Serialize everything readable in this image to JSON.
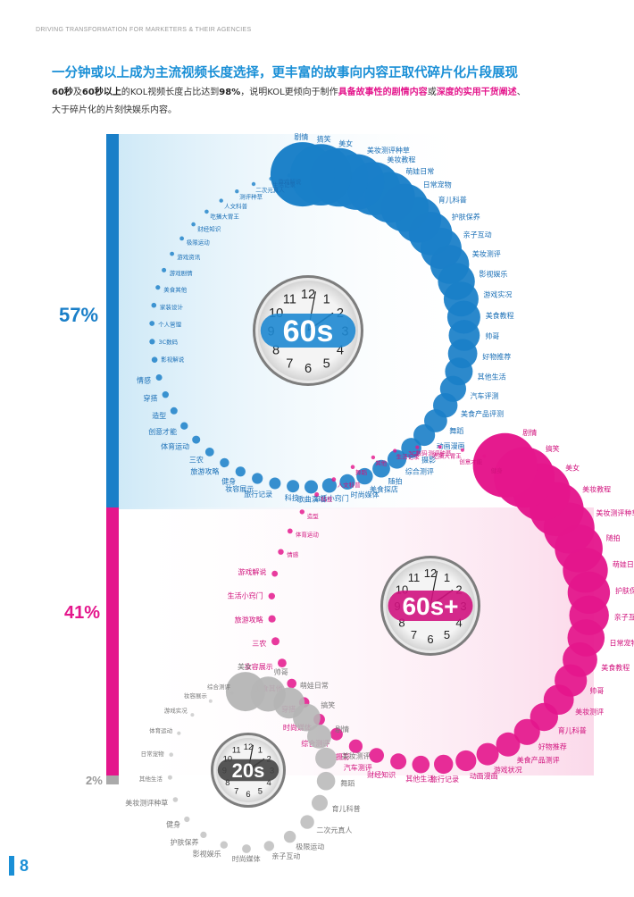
{
  "header": "DRIVING TRANSFORMATION FOR MARKETERS & THEIR AGENCIES",
  "title": "一分钟或以上成为主流视频长度选择，更丰富的故事向内容正取代碎片化片段展现",
  "subtitle": {
    "p1": "60秒",
    "p2": "及",
    "p3": "60秒以上",
    "p4": "的KOL视频长度占比达到",
    "p5": "98%",
    "p6": "，说明KOL更倾向于制作",
    "p7": "具备故事性的剧情内容",
    "p8": "或",
    "p9": "深度的实用干货阐述",
    "p10": "、",
    "p11": "大于碎片化的片刻快娱乐内容。"
  },
  "page_number": "8",
  "colors": {
    "blue": "#1a7fc8",
    "pink": "#e4168c",
    "gray": "#9a9a9a"
  },
  "chart_data": [
    {
      "type": "bubble-ring",
      "group": "60s",
      "share_percent": 57,
      "share_label": "57%",
      "clock_label": "60s",
      "categories": [
        "剧情",
        "搞笑",
        "美女",
        "美妆测评种草",
        "美妆教程",
        "萌娃日常",
        "日常宠物",
        "育儿科普",
        "护肤保养",
        "亲子互动",
        "美妆测评",
        "影视娱乐",
        "游戏实况",
        "美食教程",
        "帅哥",
        "好物推荐",
        "其他生活",
        "汽车评测",
        "美食产品评测",
        "舞蹈",
        "动画漫画",
        "摄影",
        "综合测评",
        "随拍",
        "美食探店",
        "时尚媒体",
        "生活小窍门",
        "歌曲演唱",
        "科技",
        "旅行记录",
        "妆容展示",
        "健身",
        "旅游攻略",
        "三农",
        "体育运动",
        "创意才能",
        "造型",
        "穿搭",
        "情感",
        "影视解说",
        "3C数码",
        "个人管理",
        "家装设计",
        "美食其他",
        "游戏剧情",
        "游戏资讯",
        "极限运动",
        "财经知识",
        "吃播大胃王",
        "人文科普",
        "测评种草",
        "二次元真人",
        "生活记录",
        "游戏解说"
      ]
    },
    {
      "type": "bubble-ring",
      "group": "60s+",
      "share_percent": 41,
      "share_label": "41%",
      "clock_label": "60s+",
      "categories": [
        "剧情",
        "搞笑",
        "美女",
        "美妆教程",
        "美妆测评种草",
        "随拍",
        "萌娃日常",
        "护肤保养",
        "亲子互动",
        "日常宠物",
        "美食教程",
        "帅哥",
        "美妆测评",
        "育儿科普",
        "好物推荐",
        "美食产品测评",
        "游戏状况",
        "动画漫画",
        "旅行记录",
        "其他生活",
        "财经知识",
        "汽车测评",
        "摄影",
        "综合测评",
        "时尚媒体",
        "穿搭",
        "美食其他",
        "妆容展示",
        "三农",
        "旅游攻略",
        "生活小窍门",
        "游戏解说",
        "情感",
        "体育运动",
        "造型",
        "科技",
        "人文科普",
        "舞蹈",
        "其他",
        "生活记录",
        "3C数码",
        "测评种草",
        "吃播大胃王",
        "创意才能",
        "健身"
      ]
    },
    {
      "type": "bubble-ring",
      "group": "20s",
      "share_percent": 2,
      "share_label": "2%",
      "clock_label": "20s",
      "categories": [
        "美女",
        "帅哥",
        "萌娃日常",
        "搞笑",
        "剧情",
        "美妆测评",
        "舞蹈",
        "育儿科普",
        "二次元真人",
        "极限运动",
        "亲子互动",
        "时尚媒体",
        "影视娱乐",
        "护肤保养",
        "健身",
        "美妆测评种草",
        "其他生活",
        "日常宠物",
        "体育运动",
        "游戏实况",
        "妆容展示",
        "综合测评"
      ]
    }
  ]
}
